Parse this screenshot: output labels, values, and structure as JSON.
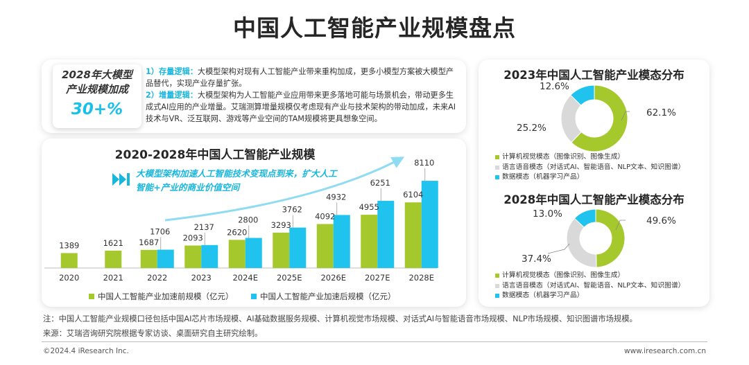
{
  "title": "中国人工智能产业规模盘点",
  "growth": {
    "label_line1": "2028年大模型",
    "label_line2": "产业规模加成",
    "value": "30+%"
  },
  "points": [
    {
      "label": "1）存量逻辑：",
      "text": "大模型架构对现有人工智能产业带来重构加成，更多小模型方案被大模型产品替代，实现产业存量扩张。"
    },
    {
      "label": "2）增量逻辑：",
      "text": "大模型架构为人工智能产业应用带来更多落地可能与场景机会，带动更多生成式AI应用的产业增量。艾瑞测算增量规模仅考虑现有产业与技术架构的带动加成，未来AI技术与VR、泛互联网、游戏等产业空间的TAM规模将更具想象空间。"
    }
  ],
  "bar_annotation": "大模型架构加速人工智能技术变现点到来，扩大人工智能+产业的商业价值空间",
  "colors": {
    "green": "#a5c92c",
    "blue": "#1fc3ee",
    "gray": "#d9d9d9",
    "accent": "#19b6de"
  },
  "chart_data": [
    {
      "type": "bar",
      "title": "2020-2028年中国人工智能产业规模",
      "categories": [
        "2020",
        "2021",
        "2022",
        "2023",
        "2024E",
        "2025E",
        "2026E",
        "2027E",
        "2028E"
      ],
      "series": [
        {
          "name": "中国人工智能产业加速前规模（亿元）",
          "values": [
            1389,
            1621,
            1687,
            2093,
            2620,
            3293,
            4092,
            4955,
            6104
          ]
        },
        {
          "name": "中国人工智能产业加速后规模（亿元）",
          "values": [
            null,
            null,
            1706,
            2137,
            2800,
            3762,
            4932,
            6251,
            8110
          ]
        }
      ],
      "ylim": [
        0,
        8500
      ]
    },
    {
      "type": "pie",
      "title": "2023年中国人工智能产业模态分布",
      "labels": [
        "计算机视觉模态（图像识别、图像生成）",
        "语言语音模态（对话式AI、智能语音、NLP文本、知识图谱）",
        "数据模态（机器学习产品）"
      ],
      "values": [
        62.1,
        25.2,
        12.6
      ],
      "value_labels": [
        "62.1%",
        "25.2%",
        "12.6%"
      ]
    },
    {
      "type": "pie",
      "title": "2028年中国人工智能产业模态分布",
      "labels": [
        "计算机视觉模态（图像识别、图像生成）",
        "语言语音模态（对话式AI、智能语音、NLP文本、知识图谱）",
        "数据模态（机器学习产品）"
      ],
      "values": [
        49.6,
        37.4,
        13.0
      ],
      "value_labels": [
        "49.6%",
        "37.4%",
        "13.0%"
      ]
    }
  ],
  "notes": {
    "note": "注：中国人工智能产业规模口径包括中国AI芯片市场规模、AI基础数据服务规模、计算机视觉市场规模、对话式AI与智能语音市场规模、NLP市场规模、知识图谱市场规模。",
    "source": "来源：艾瑞咨询研究院根据专家访谈、桌面研究自主研究绘制。"
  },
  "footer": {
    "copyright": "©2024.4 iResearch Inc.",
    "website": "www.iresearch.com.cn"
  }
}
